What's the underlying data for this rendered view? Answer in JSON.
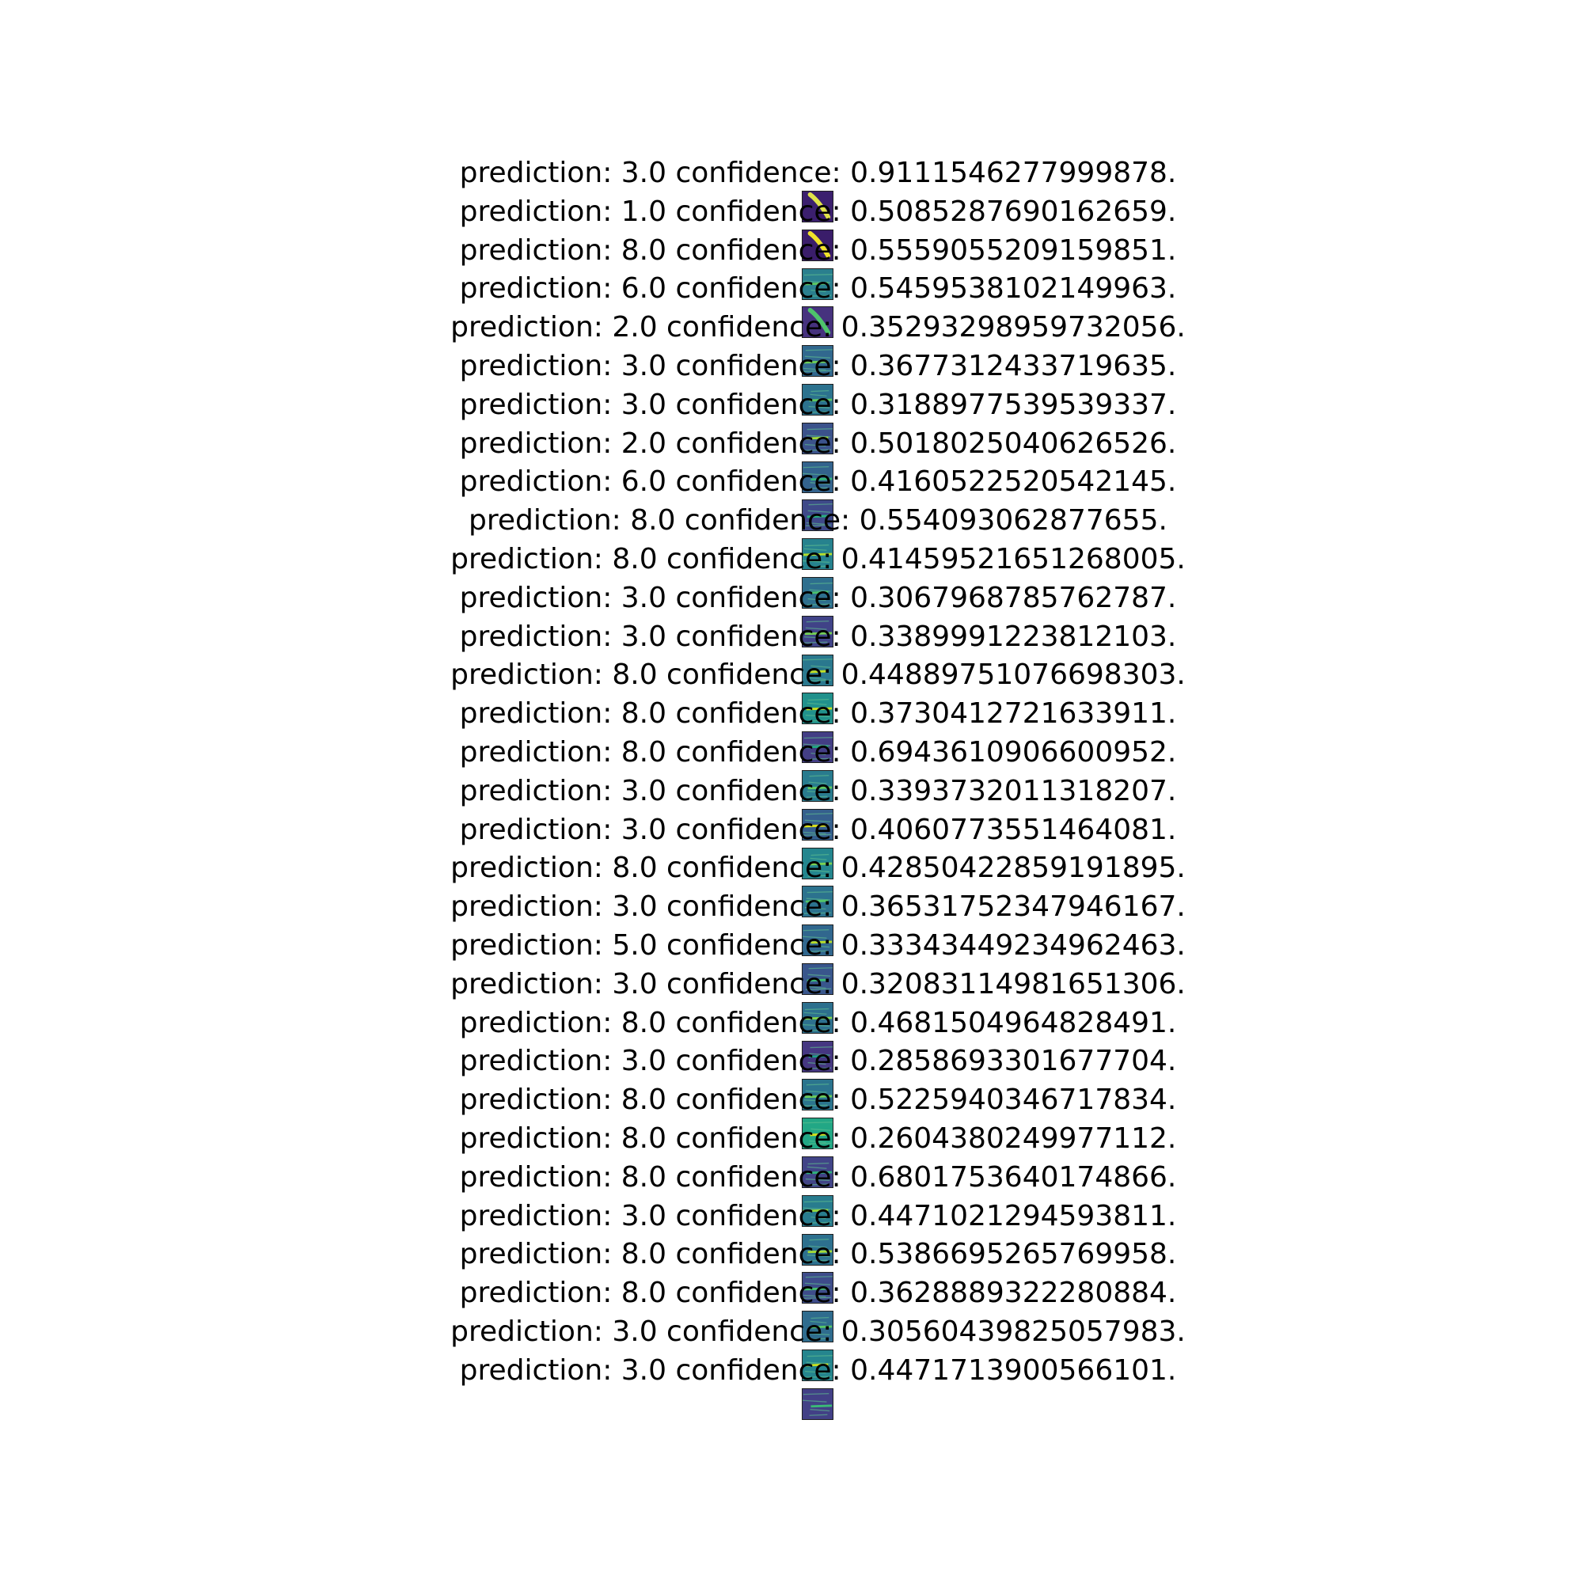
{
  "panels": [
    {
      "title": "prediction: 3.0 confidence: 0.9111546277999878.",
      "image": {
        "colormap": "viridis",
        "background": "#3b1f6e",
        "stroke": "#e0e34a",
        "pattern": "diagonal-stroke"
      }
    },
    {
      "title": "prediction: 1.0 confidence: 0.5085287690162659.",
      "image": {
        "colormap": "viridis",
        "background": "#3a1d6a",
        "stroke": "#f0e22a",
        "pattern": "diagonal-stroke"
      }
    },
    {
      "title": "prediction: 8.0 confidence: 0.5559055209159851.",
      "image": {
        "colormap": "viridis",
        "background": "#2a7f8e",
        "stroke": "#5cc863",
        "pattern": "streaks"
      }
    },
    {
      "title": "prediction: 6.0 confidence: 0.5459538102149963.",
      "image": {
        "colormap": "viridis",
        "background": "#46327e",
        "stroke": "#4ec36b",
        "pattern": "diagonal-stroke"
      }
    },
    {
      "title": "prediction: 2.0 confidence: 0.35293298959732056.",
      "image": {
        "colormap": "viridis",
        "background": "#31688e",
        "stroke": "#6ece58",
        "pattern": "streaks"
      }
    },
    {
      "title": "prediction: 3.0 confidence: 0.3677312433719635.",
      "image": {
        "colormap": "viridis",
        "background": "#2c728e",
        "stroke": "#5ec962",
        "pattern": "streaks"
      }
    },
    {
      "title": "prediction: 3.0 confidence: 0.3188977539539337.",
      "image": {
        "colormap": "viridis",
        "background": "#3b528b",
        "stroke": "#a0da39",
        "pattern": "streaks"
      }
    },
    {
      "title": "prediction: 2.0 confidence: 0.5018025040626526.",
      "image": {
        "colormap": "viridis",
        "background": "#33638d",
        "stroke": "#35b779",
        "pattern": "streaks"
      }
    },
    {
      "title": "prediction: 6.0 confidence: 0.4160522520542145.",
      "image": {
        "colormap": "viridis",
        "background": "#3e4989",
        "stroke": "#29af7f",
        "pattern": "streaks"
      }
    },
    {
      "title": "prediction: 8.0 confidence: 0.554093062877655.",
      "image": {
        "colormap": "viridis",
        "background": "#26828e",
        "stroke": "#b5de2b",
        "pattern": "streaks"
      }
    },
    {
      "title": "prediction: 8.0 confidence: 0.41459521651268005.",
      "image": {
        "colormap": "viridis",
        "background": "#2e6f8e",
        "stroke": "#4ac16d",
        "pattern": "streaks"
      }
    },
    {
      "title": "prediction: 3.0 confidence: 0.3067968785762787.",
      "image": {
        "colormap": "viridis",
        "background": "#404387",
        "stroke": "#75d054",
        "pattern": "streaks"
      }
    },
    {
      "title": "prediction: 3.0 confidence: 0.3389991223812103.",
      "image": {
        "colormap": "viridis",
        "background": "#2a788e",
        "stroke": "#c2df23",
        "pattern": "streaks"
      }
    },
    {
      "title": "prediction: 8.0 confidence: 0.44889751076698303.",
      "image": {
        "colormap": "viridis",
        "background": "#21918c",
        "stroke": "#cde11d",
        "pattern": "streaks"
      }
    },
    {
      "title": "prediction: 8.0 confidence: 0.3730412721633911.",
      "image": {
        "colormap": "viridis",
        "background": "#433e85",
        "stroke": "#22a884",
        "pattern": "streaks"
      }
    },
    {
      "title": "prediction: 8.0 confidence: 0.6943610906600952.",
      "image": {
        "colormap": "viridis",
        "background": "#297b8e",
        "stroke": "#63cb5f",
        "pattern": "streaks"
      }
    },
    {
      "title": "prediction: 3.0 confidence: 0.3393732011318207.",
      "image": {
        "colormap": "viridis",
        "background": "#355f8d",
        "stroke": "#dde318",
        "pattern": "streaks"
      }
    },
    {
      "title": "prediction: 3.0 confidence: 0.4060773551464081.",
      "image": {
        "colormap": "viridis",
        "background": "#24868e",
        "stroke": "#7ad151",
        "pattern": "streaks"
      }
    },
    {
      "title": "prediction: 8.0 confidence: 0.42850422859191895.",
      "image": {
        "colormap": "viridis",
        "background": "#2c728e",
        "stroke": "#52c569",
        "pattern": "streaks"
      }
    },
    {
      "title": "prediction: 3.0 confidence: 0.36531752347946167.",
      "image": {
        "colormap": "viridis",
        "background": "#31678e",
        "stroke": "#b8de29",
        "pattern": "streaks"
      }
    },
    {
      "title": "prediction: 5.0 confidence: 0.33343449234962463.",
      "image": {
        "colormap": "viridis",
        "background": "#39568c",
        "stroke": "#3dbc74",
        "pattern": "streaks"
      }
    },
    {
      "title": "prediction: 3.0 confidence: 0.32083114981651306.",
      "image": {
        "colormap": "viridis",
        "background": "#2d708e",
        "stroke": "#84d44b",
        "pattern": "streaks"
      }
    },
    {
      "title": "prediction: 8.0 confidence: 0.4681504964828491.",
      "image": {
        "colormap": "viridis",
        "background": "#453781",
        "stroke": "#1fa088",
        "pattern": "streaks"
      }
    },
    {
      "title": "prediction: 3.0 confidence: 0.2858693301677704.",
      "image": {
        "colormap": "viridis",
        "background": "#2b748e",
        "stroke": "#6ccd5a",
        "pattern": "streaks"
      }
    },
    {
      "title": "prediction: 8.0 confidence: 0.5225940346717834.",
      "image": {
        "colormap": "viridis",
        "background": "#22a785",
        "stroke": "#d8e219",
        "pattern": "streaks"
      }
    },
    {
      "title": "prediction: 8.0 confidence: 0.2604380249977112.",
      "image": {
        "colormap": "viridis",
        "background": "#414487",
        "stroke": "#2fb47c",
        "pattern": "streaks"
      }
    },
    {
      "title": "prediction: 8.0 confidence: 0.6801753640174866.",
      "image": {
        "colormap": "viridis",
        "background": "#287c8e",
        "stroke": "#95d840",
        "pattern": "streaks"
      }
    },
    {
      "title": "prediction: 3.0 confidence: 0.4471021294593811.",
      "image": {
        "colormap": "viridis",
        "background": "#2d708e",
        "stroke": "#a5db36",
        "pattern": "streaks"
      }
    },
    {
      "title": "prediction: 8.0 confidence: 0.5386695265769958.",
      "image": {
        "colormap": "viridis",
        "background": "#3e4c8a",
        "stroke": "#48c16e",
        "pattern": "streaks"
      }
    },
    {
      "title": "prediction: 8.0 confidence: 0.3628889322280884.",
      "image": {
        "colormap": "viridis",
        "background": "#2f6c8e",
        "stroke": "#56c667",
        "pattern": "streaks"
      }
    },
    {
      "title": "prediction: 3.0 confidence: 0.30560439825057983.",
      "image": {
        "colormap": "viridis",
        "background": "#25858e",
        "stroke": "#c8e020",
        "pattern": "streaks"
      }
    },
    {
      "title": "prediction: 3.0 confidence: 0.4471713900566101.",
      "image": {
        "colormap": "viridis",
        "background": "#424086",
        "stroke": "#3aba76",
        "pattern": "streaks"
      }
    }
  ]
}
